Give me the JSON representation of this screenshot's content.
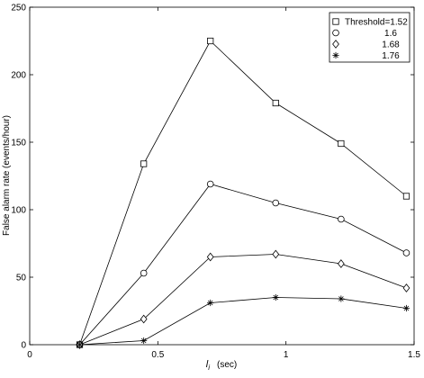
{
  "chart_data": {
    "type": "line",
    "title": "",
    "xlabel_main": "l",
    "xlabel_sub": "i",
    "xlabel_unit": "(sec)",
    "ylabel": "False alarm rate  (events/hour)",
    "xlim": [
      0,
      1.5
    ],
    "ylim": [
      0,
      250
    ],
    "xticks": [
      0,
      0.5,
      1,
      1.5
    ],
    "xtick_labels": [
      "0",
      "0.5",
      "1",
      "1.5"
    ],
    "yticks": [
      0,
      50,
      100,
      150,
      200,
      250
    ],
    "ytick_labels": [
      "0",
      "50",
      "100",
      "150",
      "200",
      "250"
    ],
    "grid": false,
    "legend_position": "top-right",
    "x": [
      0.195,
      0.445,
      0.705,
      0.96,
      1.215,
      1.47
    ],
    "series": [
      {
        "name": "Threshold=1.52",
        "marker": "square",
        "values": [
          0,
          134,
          225,
          179,
          149,
          110
        ]
      },
      {
        "name": "1.6",
        "marker": "circle",
        "values": [
          0,
          53,
          119,
          105,
          93,
          68
        ]
      },
      {
        "name": "1.68",
        "marker": "diamond",
        "values": [
          0,
          19,
          65,
          67,
          60,
          42
        ]
      },
      {
        "name": "1.76",
        "marker": "asterisk",
        "values": [
          0,
          3,
          31,
          35,
          34,
          27
        ]
      }
    ]
  }
}
